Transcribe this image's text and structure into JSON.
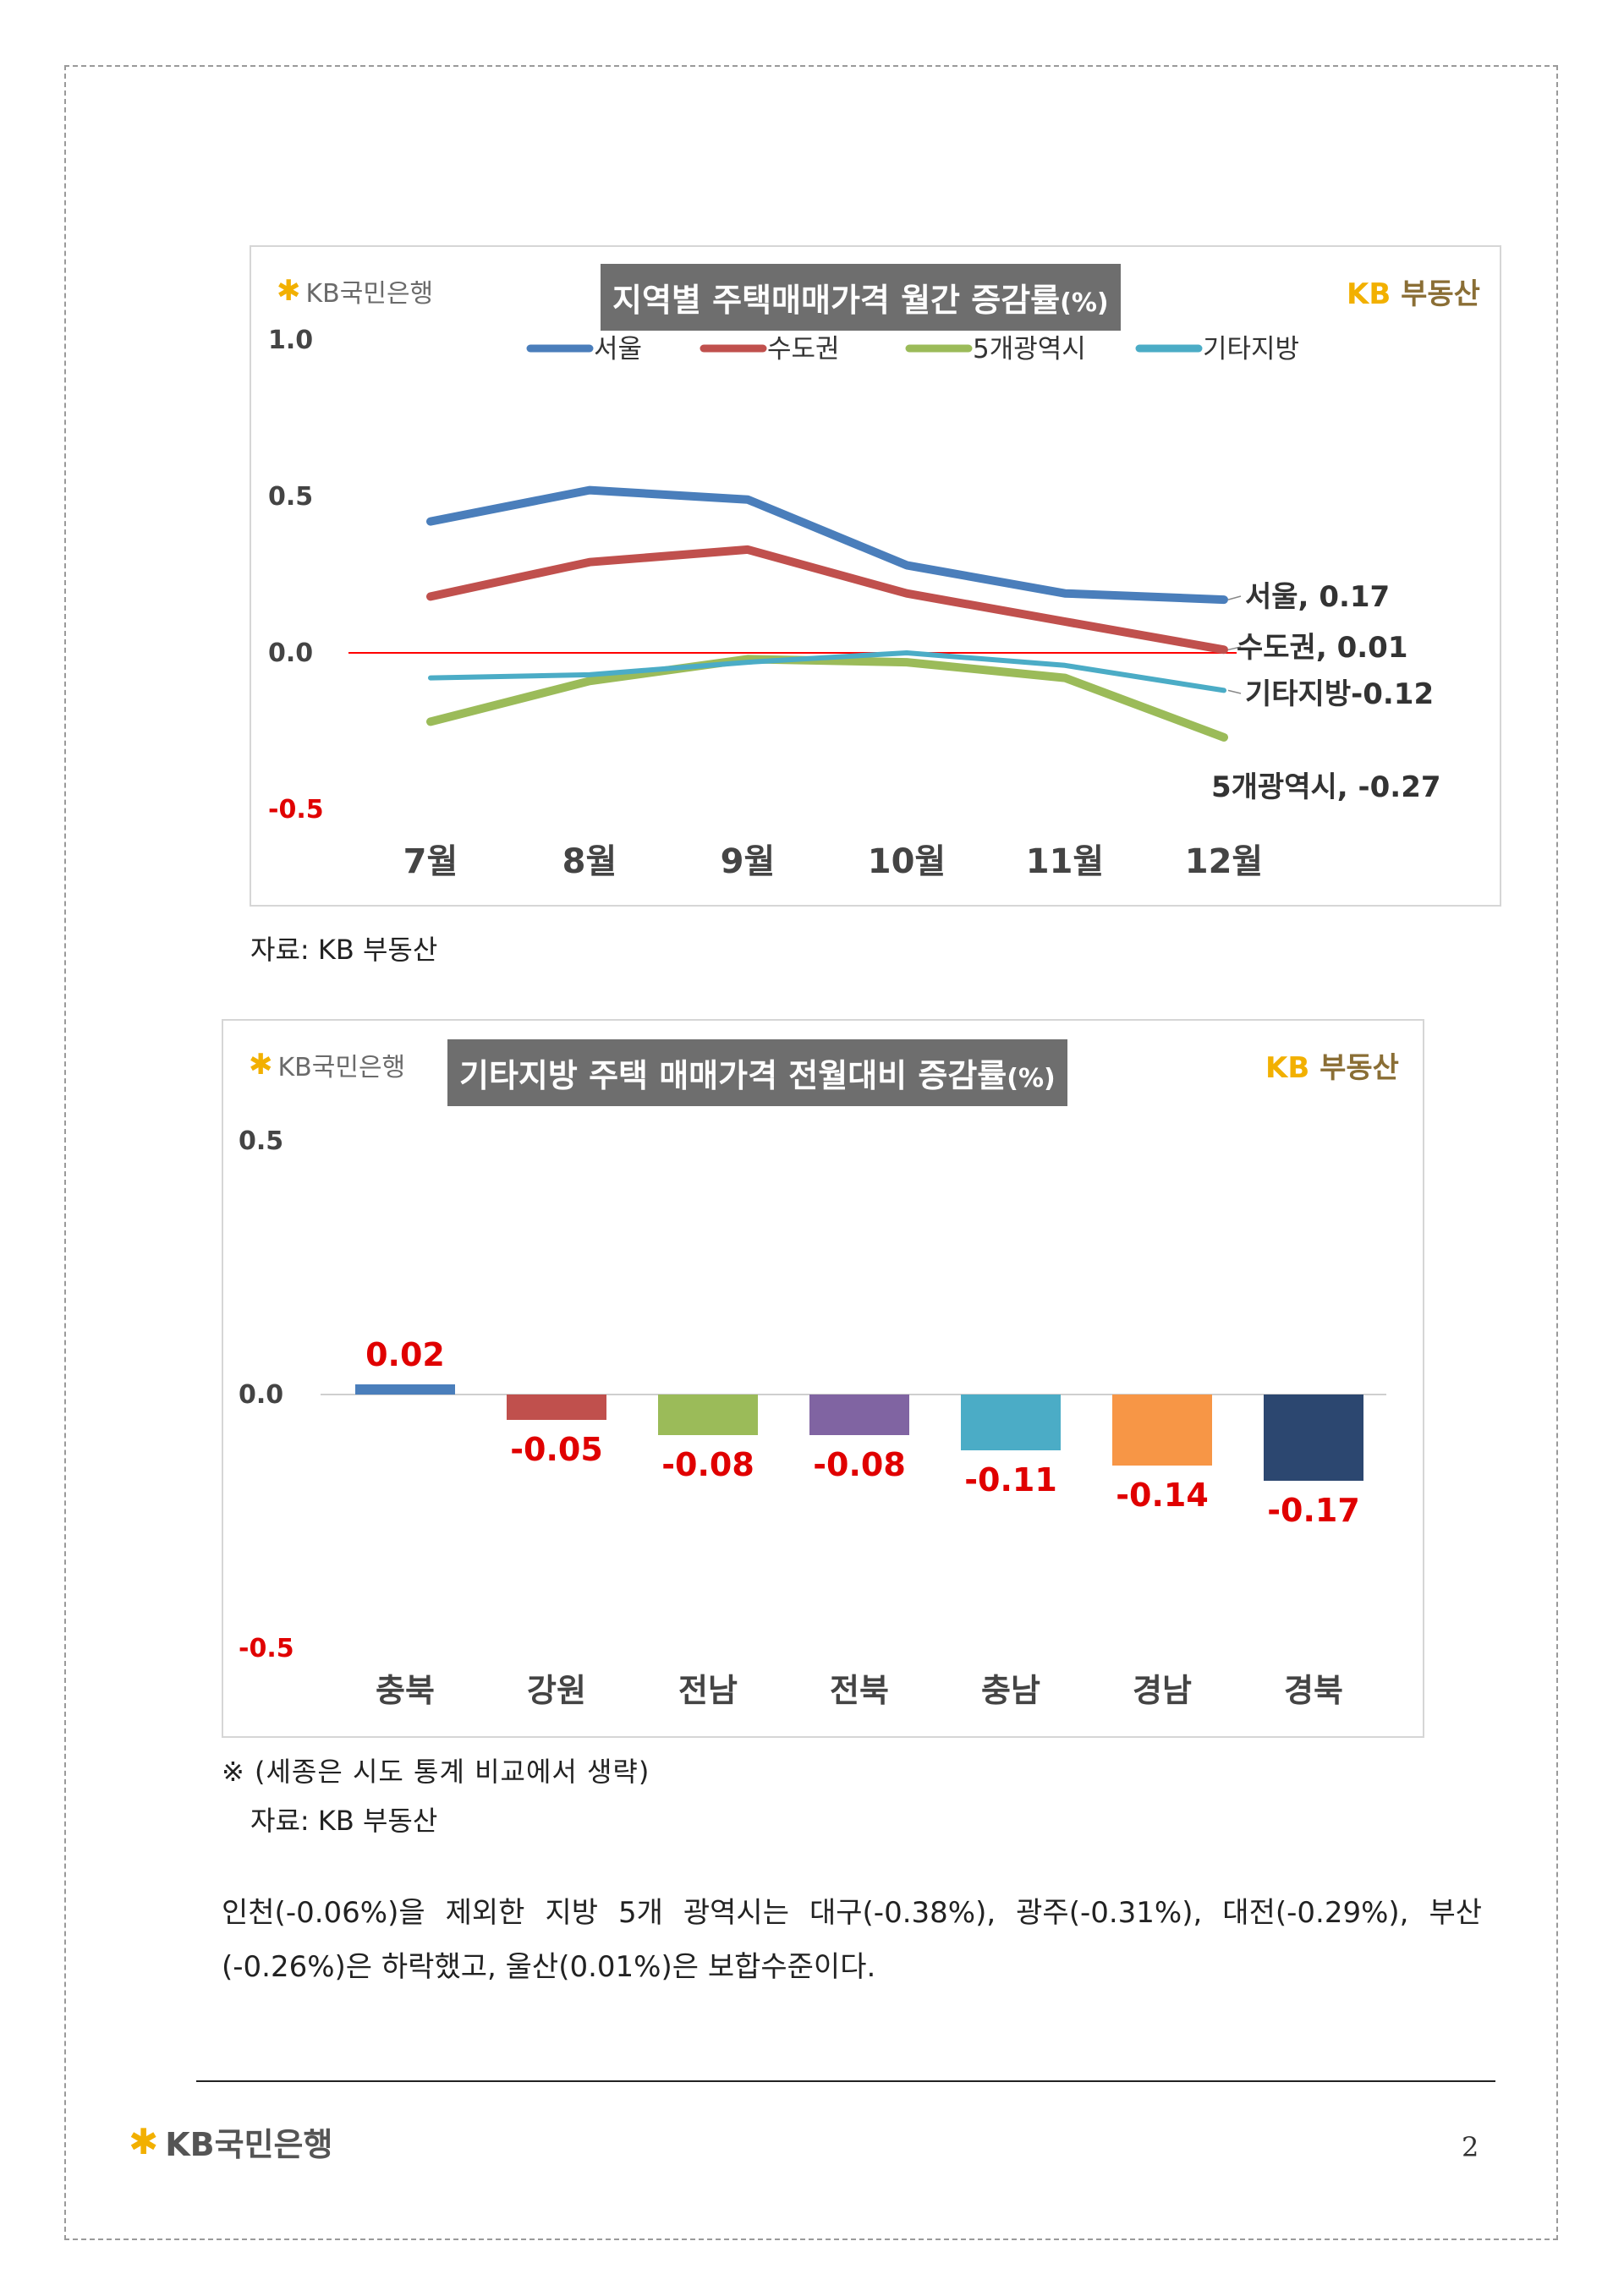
{
  "chart1": {
    "title_main": "지역별 주택매매가격 월간 증감률",
    "title_unit": "(%)",
    "brand_left": "KB국민은행",
    "brand_right_kb": "KB",
    "brand_right_text": "부동산",
    "source": "자료: KB 부동산"
  },
  "chart2": {
    "title_main": "기타지방 주택 매매가격 전월대비 증감률",
    "title_unit": "(%)",
    "brand_left": "KB국민은행",
    "brand_right_kb": "KB",
    "brand_right_text": "부동산",
    "note": "※ (세종은 시도 통계 비교에서 생략)",
    "source": "자료: KB 부동산"
  },
  "chart_data": [
    {
      "type": "line",
      "title": "지역별 주택매매가격 월간 증감률(%)",
      "categories": [
        "7월",
        "8월",
        "9월",
        "10월",
        "11월",
        "12월"
      ],
      "ylim": [
        -0.5,
        1.0
      ],
      "yticks": [
        "1.0",
        "0.5",
        "0.0",
        "-0.5"
      ],
      "legend_placement": "top",
      "zero_line_color": "#ff0000",
      "series": [
        {
          "name": "서울",
          "color": "#4a7ebb",
          "values": [
            0.42,
            0.52,
            0.49,
            0.28,
            0.19,
            0.17
          ],
          "end_label": "서울, 0.17"
        },
        {
          "name": "수도권",
          "color": "#c0504d",
          "values": [
            0.18,
            0.29,
            0.33,
            0.19,
            0.1,
            0.01
          ],
          "end_label": "수도권, 0.01"
        },
        {
          "name": "5개광역시",
          "color": "#9bbb59",
          "values": [
            -0.22,
            -0.09,
            -0.02,
            -0.03,
            -0.08,
            -0.27
          ],
          "end_label": "5개광역시, -0.27"
        },
        {
          "name": "기타지방",
          "color": "#4bacc6",
          "values": [
            -0.08,
            -0.07,
            -0.03,
            0.0,
            -0.04,
            -0.12
          ],
          "end_label": "기타지방-0.12"
        }
      ]
    },
    {
      "type": "bar",
      "title": "기타지방 주택 매매가격 전월대비 증감률(%)",
      "categories": [
        "충북",
        "강원",
        "전남",
        "전북",
        "충남",
        "경남",
        "경북"
      ],
      "values": [
        0.02,
        -0.05,
        -0.08,
        -0.08,
        -0.11,
        -0.14,
        -0.17
      ],
      "data_labels": [
        "0.02",
        "-0.05",
        "-0.08",
        "-0.08",
        "-0.11",
        "-0.14",
        "-0.17"
      ],
      "colors": [
        "#4a7ebb",
        "#c0504d",
        "#9bbb59",
        "#8064a2",
        "#4bacc6",
        "#f79646",
        "#2c4770"
      ],
      "ylim": [
        -0.5,
        0.5
      ],
      "yticks": [
        "0.5",
        "0.0",
        "-0.5"
      ]
    }
  ],
  "body_text": {
    "paragraph": "인천(-0.06%)을 제외한 지방 5개 광역시는 대구(-0.38%), 광주(-0.31%), 대전(-0.29%), 부산(-0.26%)은 하락했고, 울산(0.01%)은 보합수준이다."
  },
  "footer": {
    "brand": "KB국민은행",
    "page_number": "2"
  }
}
